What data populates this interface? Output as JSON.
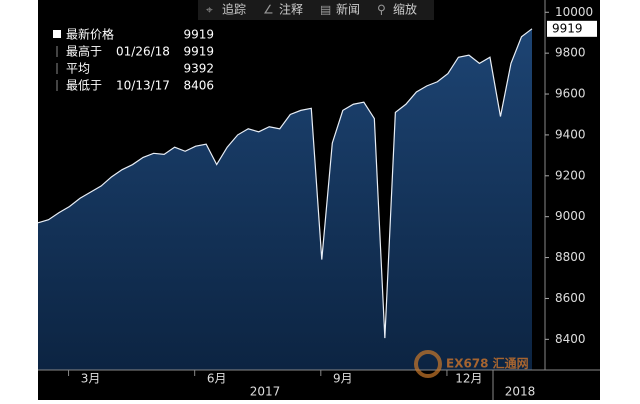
{
  "toolbar": [
    "追踪",
    "注释",
    "新闻",
    "缩放"
  ],
  "legend": [
    {
      "label": "最新价格",
      "value": 9919
    },
    {
      "label": "最高于",
      "date": "01/26/18",
      "value": 9919
    },
    {
      "label": "平均",
      "value": 9392
    },
    {
      "label": "最低于",
      "date": "10/13/17",
      "value": 8406
    }
  ],
  "watermark": "EX678 汇通网",
  "chart_data": {
    "type": "area",
    "categories": [
      null,
      null,
      null,
      null,
      null,
      "3月",
      null,
      null,
      null,
      null,
      null,
      null,
      null,
      null,
      null,
      null,
      null,
      "6月",
      null,
      null,
      null,
      null,
      null,
      null,
      null,
      null,
      null,
      null,
      null,
      "9月",
      null,
      null,
      null,
      null,
      null,
      null,
      null,
      null,
      null,
      null,
      null,
      "12月",
      null,
      null,
      null,
      null,
      null,
      null
    ],
    "year_labels": [
      "2017",
      "2018"
    ],
    "series": [
      {
        "name": "最新价格",
        "color": "#16345c",
        "line_color": "#e8eef6",
        "values": [
          8970,
          8985,
          9020,
          9050,
          9090,
          9120,
          9150,
          9195,
          9230,
          9255,
          9290,
          9310,
          9305,
          9340,
          9320,
          9345,
          9355,
          9255,
          9340,
          9400,
          9430,
          9415,
          9440,
          9430,
          9500,
          9520,
          9530,
          8790,
          9360,
          9520,
          9550,
          9560,
          9480,
          8406,
          9510,
          9550,
          9610,
          9640,
          9660,
          9700,
          9780,
          9790,
          9750,
          9780,
          9490,
          9750,
          9880,
          9919
        ]
      }
    ],
    "ylim": [
      8250,
      10060
    ],
    "yticks": [
      8400,
      8600,
      8800,
      9000,
      9200,
      9400,
      9600,
      9800,
      10000
    ],
    "grid": false
  }
}
